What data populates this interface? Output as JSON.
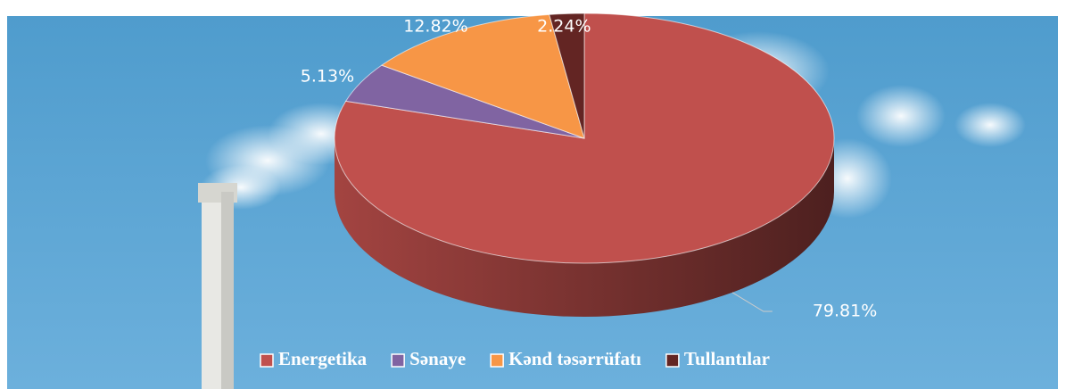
{
  "chart_data": {
    "type": "pie",
    "categories": [
      "Energetika",
      "Sənaye",
      "Kənd təsərrüfatı",
      "Tullantılar"
    ],
    "values": [
      79.81,
      5.13,
      12.82,
      2.24
    ],
    "value_labels": [
      "79.81%",
      "5.13%",
      "12.82%",
      "2.24%"
    ],
    "colors": [
      "#c0504d",
      "#8064a2",
      "#f79646",
      "#632523"
    ],
    "legend": "bottom"
  }
}
